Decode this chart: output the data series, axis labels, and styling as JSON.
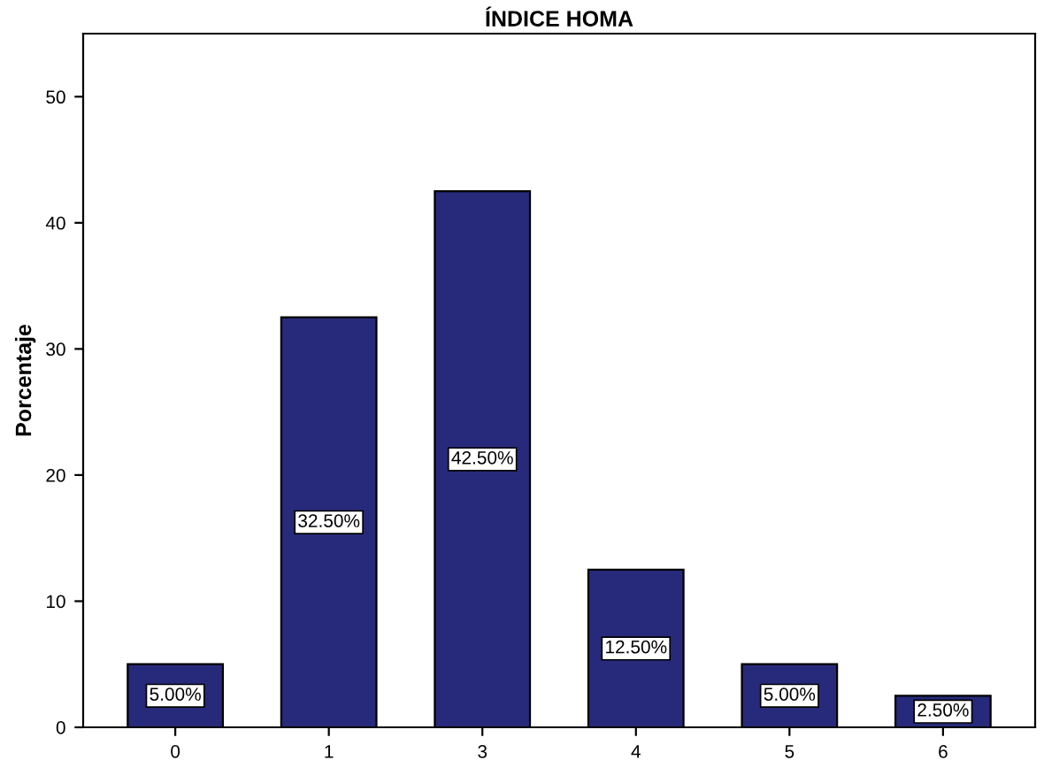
{
  "chart_data": {
    "type": "bar",
    "title": "ÍNDICE HOMA",
    "ylabel": "Porcentaje",
    "categories": [
      "0",
      "1",
      "3",
      "4",
      "5",
      "6"
    ],
    "values": [
      5,
      32.5,
      42.5,
      12.5,
      5,
      2.5
    ],
    "value_labels": [
      "5.00%",
      "32.50%",
      "42.50%",
      "12.50%",
      "5.00%",
      "2.50%"
    ],
    "color": "#272a7a",
    "ylim": [
      0,
      55
    ],
    "yticks": [
      0,
      10,
      20,
      30,
      40,
      50
    ],
    "grid": false,
    "legend": false
  }
}
